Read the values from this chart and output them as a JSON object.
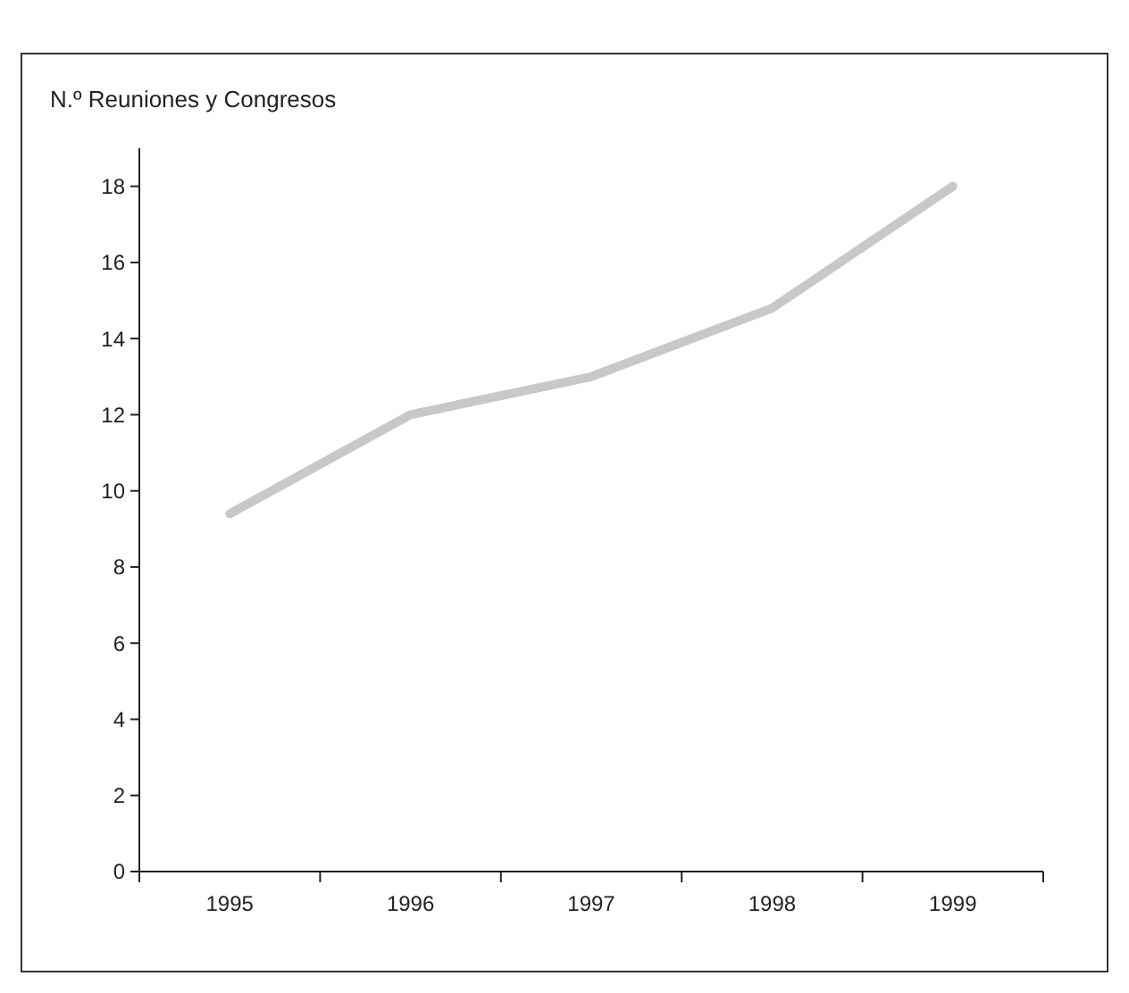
{
  "chart_data": {
    "type": "line",
    "title": "N.º Reuniones y Congresos",
    "categories": [
      "1995",
      "1996",
      "1997",
      "1998",
      "1999"
    ],
    "series": [
      {
        "color": "#c8c8c8",
        "values": [
          9.4,
          12,
          13,
          14.8,
          18
        ]
      }
    ],
    "ylim": [
      0,
      19
    ],
    "yticks": [
      0,
      2,
      4,
      6,
      8,
      10,
      12,
      14,
      16,
      18
    ],
    "grid": false,
    "marker": "none",
    "line_style": "solid"
  }
}
